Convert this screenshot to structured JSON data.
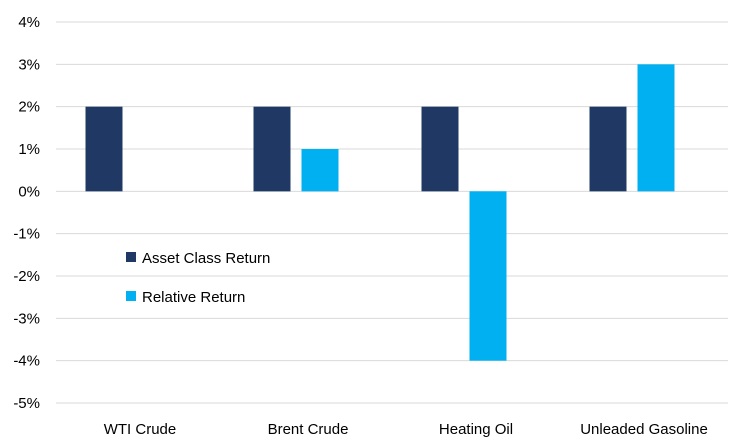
{
  "chart_data": {
    "type": "bar",
    "title": "",
    "xlabel": "",
    "ylabel": "",
    "categories": [
      "WTI Crude",
      "Brent Crude",
      "Heating Oil",
      "Unleaded Gasoline"
    ],
    "series": [
      {
        "name": "Asset Class Return",
        "color": "#1f3864",
        "values": [
          2,
          2,
          2,
          2
        ]
      },
      {
        "name": "Relative Return",
        "color": "#00b0f0",
        "values": [
          0,
          1,
          -4,
          3
        ]
      }
    ],
    "ylim": [
      -5,
      4
    ],
    "yticks": [
      4,
      3,
      2,
      1,
      0,
      -1,
      -2,
      -3,
      -4,
      -5
    ],
    "ytick_labels": [
      "4%",
      "3%",
      "2%",
      "1%",
      "0%",
      "-1%",
      "-2%",
      "-3%",
      "-4%",
      "-5%"
    ],
    "grid": true,
    "legend_position": "inside-left"
  }
}
